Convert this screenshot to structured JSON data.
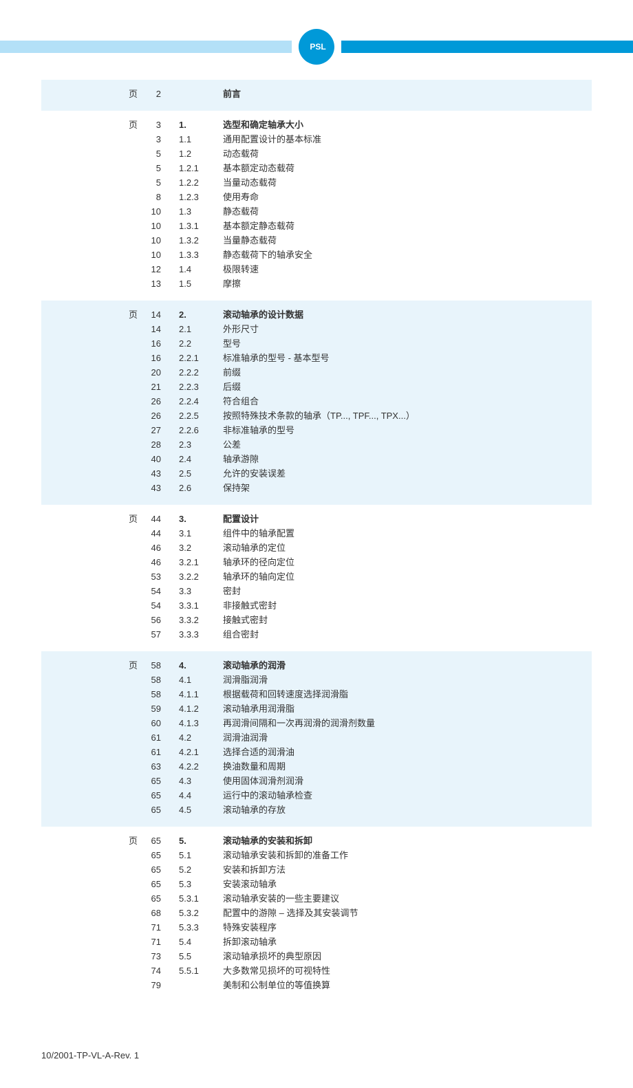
{
  "logo_text": "PSL",
  "page_label": "页",
  "footer": "10/2001-TP-VL-A-Rev. 1",
  "colors": {
    "band_left": "#b3e0f7",
    "band_right": "#0099d8",
    "tint": "#e8f4fb",
    "logo_outer": "#0099d8",
    "logo_text": "#ffffff"
  },
  "sections": [
    {
      "tint": true,
      "rows": [
        {
          "page": "2",
          "no": "",
          "title": "前言",
          "head": true
        }
      ]
    },
    {
      "tint": false,
      "rows": [
        {
          "page": "3",
          "no": "1.",
          "title": "选型和确定轴承大小",
          "head": true
        },
        {
          "page": "3",
          "no": "1.1",
          "title": "通用配置设计的基本标准"
        },
        {
          "page": "5",
          "no": "1.2",
          "title": "动态载荷"
        },
        {
          "page": "5",
          "no": "1.2.1",
          "title": "基本额定动态载荷"
        },
        {
          "page": "5",
          "no": "1.2.2",
          "title": "当量动态载荷"
        },
        {
          "page": "8",
          "no": "1.2.3",
          "title": "使用寿命"
        },
        {
          "page": "10",
          "no": "1.3",
          "title": "静态载荷"
        },
        {
          "page": "10",
          "no": "1.3.1",
          "title": "基本额定静态载荷"
        },
        {
          "page": "10",
          "no": "1.3.2",
          "title": "当量静态载荷"
        },
        {
          "page": "10",
          "no": "1.3.3",
          "title": "静态载荷下的轴承安全"
        },
        {
          "page": "12",
          "no": "1.4",
          "title": "极限转速"
        },
        {
          "page": "13",
          "no": "1.5",
          "title": "摩擦"
        }
      ]
    },
    {
      "tint": true,
      "rows": [
        {
          "page": "14",
          "no": "2.",
          "title": "滚动轴承的设计数据",
          "head": true
        },
        {
          "page": "14",
          "no": "2.1",
          "title": "外形尺寸"
        },
        {
          "page": "16",
          "no": "2.2",
          "title": "型号"
        },
        {
          "page": "16",
          "no": "2.2.1",
          "title": "标准轴承的型号 - 基本型号"
        },
        {
          "page": "20",
          "no": "2.2.2",
          "title": "前缀"
        },
        {
          "page": "21",
          "no": "2.2.3",
          "title": "后缀"
        },
        {
          "page": "26",
          "no": "2.2.4",
          "title": "符合组合"
        },
        {
          "page": "26",
          "no": "2.2.5",
          "title": "按照特殊技术条款的轴承（TP..., TPF..., TPX...）"
        },
        {
          "page": "27",
          "no": "2.2.6",
          "title": "非标准轴承的型号"
        },
        {
          "page": "28",
          "no": "2.3",
          "title": "公差"
        },
        {
          "page": "40",
          "no": "2.4",
          "title": "轴承游隙"
        },
        {
          "page": "43",
          "no": "2.5",
          "title": "允许的安装误差"
        },
        {
          "page": "43",
          "no": "2.6",
          "title": "保持架"
        }
      ]
    },
    {
      "tint": false,
      "rows": [
        {
          "page": "44",
          "no": "3.",
          "title": "配置设计",
          "head": true
        },
        {
          "page": "44",
          "no": "3.1",
          "title": "组件中的轴承配置"
        },
        {
          "page": "46",
          "no": "3.2",
          "title": "滚动轴承的定位"
        },
        {
          "page": "46",
          "no": "3.2.1",
          "title": "轴承环的径向定位"
        },
        {
          "page": "53",
          "no": "3.2.2",
          "title": "轴承环的轴向定位"
        },
        {
          "page": "54",
          "no": "3.3",
          "title": "密封"
        },
        {
          "page": "54",
          "no": "3.3.1",
          "title": "非接触式密封"
        },
        {
          "page": "56",
          "no": "3.3.2",
          "title": "接触式密封"
        },
        {
          "page": "57",
          "no": "3.3.3",
          "title": "组合密封"
        }
      ]
    },
    {
      "tint": true,
      "rows": [
        {
          "page": "58",
          "no": "4.",
          "title": "滚动轴承的润滑",
          "head": true
        },
        {
          "page": "58",
          "no": "4.1",
          "title": "润滑脂润滑"
        },
        {
          "page": "58",
          "no": "4.1.1",
          "title": "根据载荷和回转速度选择润滑脂"
        },
        {
          "page": "59",
          "no": "4.1.2",
          "title": "滚动轴承用润滑脂"
        },
        {
          "page": "60",
          "no": "4.1.3",
          "title": "再润滑间隔和一次再润滑的润滑剂数量"
        },
        {
          "page": "61",
          "no": "4.2",
          "title": "润滑油润滑"
        },
        {
          "page": "61",
          "no": "4.2.1",
          "title": "选择合适的润滑油"
        },
        {
          "page": "63",
          "no": "4.2.2",
          "title": "换油数量和周期"
        },
        {
          "page": "65",
          "no": "4.3",
          "title": "使用固体润滑剂润滑"
        },
        {
          "page": "65",
          "no": "4.4",
          "title": "运行中的滚动轴承检查"
        },
        {
          "page": "65",
          "no": "4.5",
          "title": "滚动轴承的存放"
        }
      ]
    },
    {
      "tint": false,
      "rows": [
        {
          "page": "65",
          "no": "5.",
          "title": "滚动轴承的安装和拆卸",
          "head": true
        },
        {
          "page": "65",
          "no": "5.1",
          "title": "滚动轴承安装和拆卸的准备工作"
        },
        {
          "page": "65",
          "no": "5.2",
          "title": "安装和拆卸方法"
        },
        {
          "page": "65",
          "no": "5.3",
          "title": "安装滚动轴承"
        },
        {
          "page": "65",
          "no": "5.3.1",
          "title": "滚动轴承安装的一些主要建议"
        },
        {
          "page": "68",
          "no": "5.3.2",
          "title": "配置中的游隙 – 选择及其安装调节"
        },
        {
          "page": "71",
          "no": "5.3.3",
          "title": "特殊安装程序"
        },
        {
          "page": "71",
          "no": "5.4",
          "title": "拆卸滚动轴承"
        },
        {
          "page": "73",
          "no": "5.5",
          "title": "滚动轴承损坏的典型原因"
        },
        {
          "page": "74",
          "no": "5.5.1",
          "title": "大多数常见损坏的可视特性"
        },
        {
          "page": "79",
          "no": "",
          "title": "美制和公制单位的等值换算"
        }
      ]
    }
  ]
}
